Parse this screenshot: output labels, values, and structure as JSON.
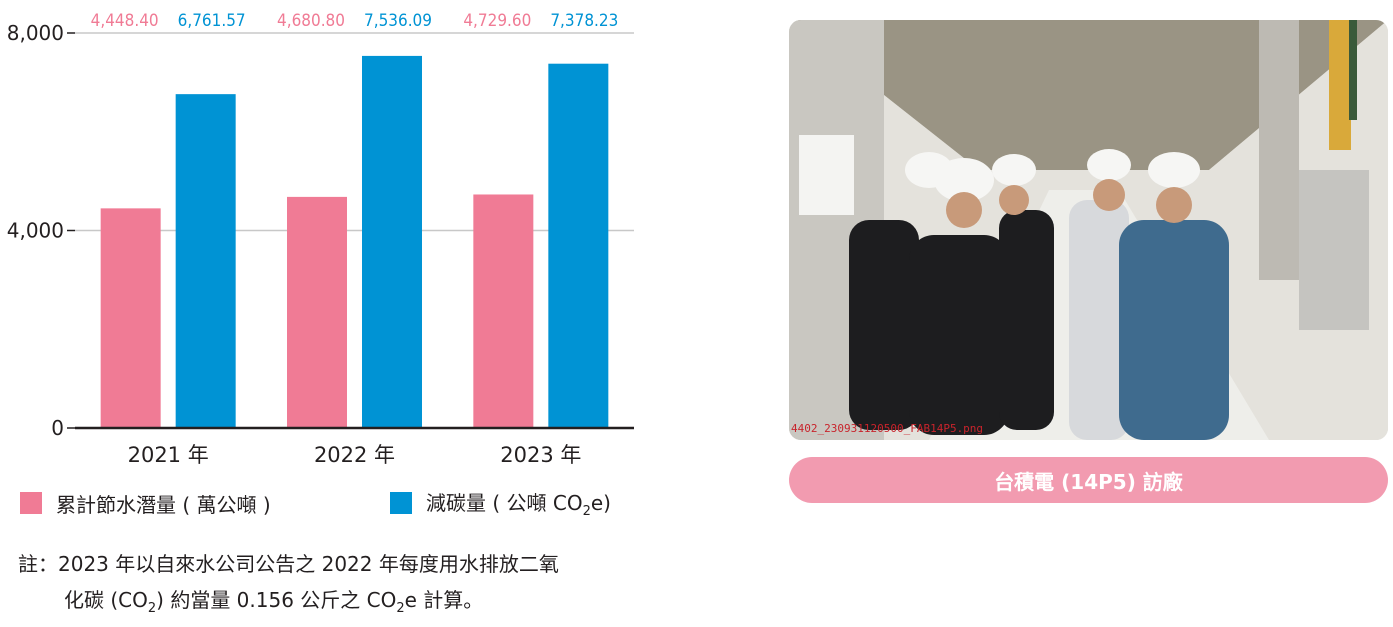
{
  "chart_data": {
    "type": "bar",
    "categories": [
      "2021 年",
      "2022 年",
      "2023 年"
    ],
    "series": [
      {
        "name": "累計節水潛量 ( 萬公噸 )",
        "values": [
          4448.4,
          4680.8,
          4729.6
        ],
        "labels": [
          "4,448.40",
          "4,680.80",
          "4,729.60"
        ],
        "color": "#f07b95"
      },
      {
        "name": "減碳量 ( 公噸 CO2e)",
        "values": [
          6761.57,
          7536.09,
          7378.23
        ],
        "labels": [
          "6,761.57",
          "7,536.09",
          "7,378.23"
        ],
        "color": "#0093d4"
      }
    ],
    "yticks": [
      "0",
      "4,000",
      "8,000"
    ],
    "ylim": [
      0,
      8000
    ],
    "grid": true,
    "legend_position": "bottom"
  },
  "legend": {
    "water_label": "累計節水潛量 ( 萬公噸 )",
    "carbon_label_prefix": "減碳量 ( 公噸 CO",
    "carbon_label_sub": "2",
    "carbon_label_suffix": "e)"
  },
  "note": {
    "line1": "註：2023 年以自來水公司公告之 2022 年每度用水排放二氧",
    "line2_a": "化碳 (CO",
    "line2_sub1": "2",
    "line2_b": ") 約當量 0.156 公斤之 CO",
    "line2_sub2": "2",
    "line2_c": "e 計算。"
  },
  "photo": {
    "caption": "台積電 (14P5) 訪廠",
    "watermark": "4402_230931120500_FAB14P5.png"
  }
}
